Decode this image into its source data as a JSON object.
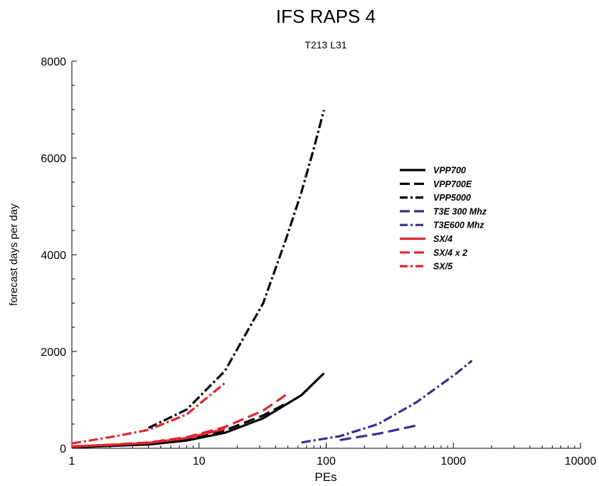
{
  "chart_data": {
    "type": "line",
    "title": "IFS RAPS 4",
    "subtitle": "T213 L31",
    "xlabel": "PEs",
    "ylabel": "forecast days per day",
    "x_scale": "log",
    "xlim": [
      1,
      10000
    ],
    "ylim": [
      0,
      8000
    ],
    "x_ticks": [
      1,
      10,
      100,
      1000,
      10000
    ],
    "x_tick_labels": [
      "1",
      "10",
      "100",
      "1000",
      "10000"
    ],
    "y_ticks": [
      0,
      2000,
      4000,
      6000,
      8000
    ],
    "y_tick_labels": [
      "0",
      "2000",
      "4000",
      "6000",
      "8000"
    ],
    "grid": false,
    "legend_position": "right",
    "series": [
      {
        "name": "VPP700",
        "color": "#000000",
        "dash": "solid",
        "x": [
          1,
          4,
          8,
          16,
          32,
          64,
          96
        ],
        "y": [
          20,
          80,
          160,
          320,
          620,
          1100,
          1550
        ]
      },
      {
        "name": "VPP700E",
        "color": "#000000",
        "dash": "dash",
        "x": [
          4,
          8,
          16,
          32,
          48
        ],
        "y": [
          100,
          190,
          370,
          680,
          920
        ]
      },
      {
        "name": "VPP5000",
        "color": "#000000",
        "dash": "dashdot",
        "x": [
          4,
          8,
          16,
          32,
          48,
          64,
          80,
          96
        ],
        "y": [
          420,
          800,
          1600,
          3000,
          4300,
          5300,
          6200,
          6990
        ]
      },
      {
        "name": "T3E 300 Mhz",
        "color": "#3f2b8c",
        "dash": "dash",
        "x": [
          128,
          256,
          512
        ],
        "y": [
          170,
          300,
          470
        ]
      },
      {
        "name": "T3E600 Mhz",
        "color": "#3f2b8c",
        "dash": "dashdot",
        "x": [
          64,
          128,
          256,
          512,
          1024,
          1400
        ],
        "y": [
          120,
          250,
          500,
          950,
          1520,
          1810
        ]
      },
      {
        "name": "SX/4",
        "color": "#e0262f",
        "dash": "solid",
        "x": [
          1,
          2,
          4,
          8,
          16
        ],
        "y": [
          40,
          70,
          110,
          210,
          400
        ]
      },
      {
        "name": "SX/4 x 2",
        "color": "#e0262f",
        "dash": "dash",
        "x": [
          1,
          4,
          8,
          16,
          32,
          48
        ],
        "y": [
          30,
          120,
          230,
          440,
          780,
          1100
        ]
      },
      {
        "name": "SX/5",
        "color": "#e0262f",
        "dash": "dashdot",
        "x": [
          1,
          2,
          4,
          8,
          16
        ],
        "y": [
          100,
          230,
          380,
          700,
          1350
        ]
      }
    ]
  }
}
